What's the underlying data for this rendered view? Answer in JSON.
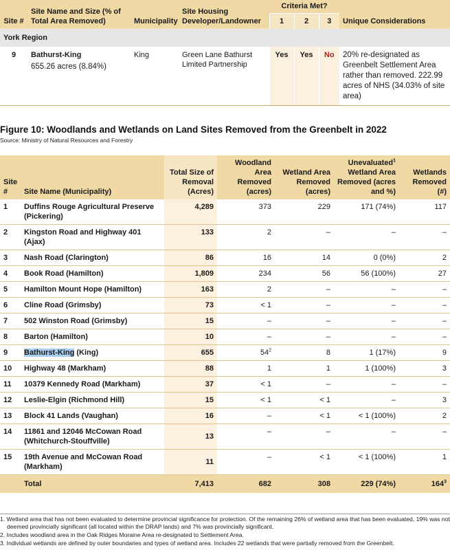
{
  "top_table": {
    "headers": {
      "site_num": "Site #",
      "site_name": "Site Name and Size (% of Total Area Removed)",
      "municipality": "Municipality",
      "developer": "Site Housing Developer/Landowner",
      "criteria": "Criteria Met?",
      "criteria_cols": [
        "1",
        "2",
        "3"
      ],
      "unique": "Unique Considerations"
    },
    "region": "York Region",
    "row": {
      "num": "9",
      "name": "Bathurst-King",
      "size": "655.26 acres (8.84%)",
      "municipality": "King",
      "developer": "Green Lane Bathurst Limited Partnership",
      "criteria": [
        "Yes",
        "Yes",
        "No"
      ],
      "unique": "20% re-designated as Greenbelt Settlement Area rather than removed. 222.99 acres of NHS (34.03% of site area)"
    }
  },
  "figure": {
    "title": "Figure 10: Woodlands and Wetlands on Land Sites Removed from the Greenbelt in 2022",
    "source": "Source: Ministry of Natural Resources and Forestry"
  },
  "main_table": {
    "headers": {
      "site": "Site #",
      "name": "Site Name (Municipality)",
      "total": "Total Size of Removal (Acres)",
      "woodland": "Woodland Area Removed (acres)",
      "wetland": "Wetland Area Removed (acres)",
      "uneval": "Unevaluated",
      "uneval_sup": "1",
      "uneval_rest": "Wetland Area Removed (acres and %)",
      "wetlands": "Wetlands Removed (#)"
    },
    "rows": [
      {
        "num": "1",
        "name": "Duffins Rouge Agricultural Preserve (Pickering)",
        "total": "4,289",
        "woodland": "373",
        "wetland": "229",
        "uneval": "171 (74%)",
        "count": "117"
      },
      {
        "num": "2",
        "name": "Kingston Road and Highway 401 (Ajax)",
        "total": "133",
        "woodland": "2",
        "wetland": "–",
        "uneval": "–",
        "count": "–"
      },
      {
        "num": "3",
        "name": "Nash Road (Clarington)",
        "total": "86",
        "woodland": "16",
        "wetland": "14",
        "uneval": "0 (0%)",
        "count": "2"
      },
      {
        "num": "4",
        "name": "Book Road (Hamilton)",
        "total": "1,809",
        "woodland": "234",
        "wetland": "56",
        "uneval": "56 (100%)",
        "count": "27"
      },
      {
        "num": "5",
        "name": "Hamilton Mount Hope (Hamilton)",
        "total": "163",
        "woodland": "2",
        "wetland": "–",
        "uneval": "–",
        "count": "–"
      },
      {
        "num": "6",
        "name": "Cline Road (Grimsby)",
        "total": "73",
        "woodland": "< 1",
        "wetland": "–",
        "uneval": "–",
        "count": "–"
      },
      {
        "num": "7",
        "name": "502 Winston Road (Grimsby)",
        "total": "15",
        "woodland": "–",
        "wetland": "–",
        "uneval": "–",
        "count": "–"
      },
      {
        "num": "8",
        "name": "Barton (Hamilton)",
        "total": "10",
        "woodland": "–",
        "wetland": "–",
        "uneval": "–",
        "count": "–"
      },
      {
        "num": "9",
        "name_hl": "Bathurst-King",
        "name_rest": " (King)",
        "total": "655",
        "woodland": "54",
        "woodland_sup": "2",
        "wetland": "8",
        "uneval": "1 (17%)",
        "count": "9"
      },
      {
        "num": "10",
        "name": "Highway 48 (Markham)",
        "total": "88",
        "woodland": "1",
        "wetland": "1",
        "uneval": "1 (100%)",
        "count": "3"
      },
      {
        "num": "11",
        "name": "10379 Kennedy Road (Markham)",
        "total": "37",
        "woodland": "< 1",
        "wetland": "–",
        "uneval": "–",
        "count": "–"
      },
      {
        "num": "12",
        "name": "Leslie-Elgin (Richmond Hill)",
        "total": "15",
        "woodland": "< 1",
        "wetland": "< 1",
        "uneval": "–",
        "count": "3"
      },
      {
        "num": "13",
        "name": "Block 41 Lands (Vaughan)",
        "total": "16",
        "woodland": "–",
        "wetland": "< 1",
        "uneval": "< 1 (100%)",
        "count": "2"
      },
      {
        "num": "14",
        "name": "11861 and 12046 McCowan Road (Whitchurch-Stouffville)",
        "total": "13",
        "woodland": "–",
        "wetland": "–",
        "uneval": "–",
        "count": "–"
      },
      {
        "num": "15",
        "name": "19th Avenue and McCowan Road (Markham)",
        "total": "11",
        "woodland": "–",
        "wetland": "< 1",
        "uneval": "< 1 (100%)",
        "count": "1"
      }
    ],
    "total_row": {
      "label": "Total",
      "total": "7,413",
      "woodland": "682",
      "wetland": "308",
      "uneval": "229 (74%)",
      "count": "164",
      "count_sup": "3"
    }
  },
  "footnotes": [
    "1. Wetland area that has not been evaluated to determine provincial significance for protection. Of the remaining 26% of wetland area that has been evaluated, 19% was not deemed provincially significant (all located within the DRAP lands) and 7% was provincially significant.",
    "2. Includes woodland area in the Oak Ridges Moraine Area re-designated to Settlement Area.",
    "3. Individual wetlands are defined by outer boundaries and types of wetland area. Includes 22 wetlands that were partially removed from the Greenbelt."
  ]
}
